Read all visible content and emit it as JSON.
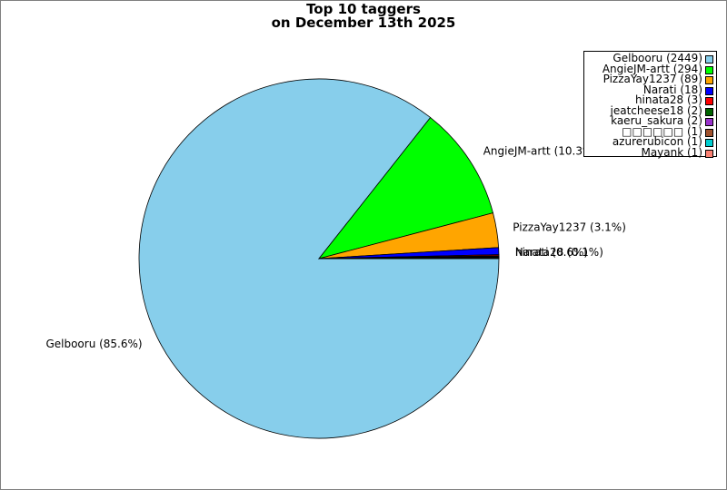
{
  "title_line1": "Top 10 taggers",
  "title_line2": "on December 13th 2025",
  "chart_data": {
    "type": "pie",
    "title": "Top 10 taggers on December 13th 2025",
    "legend_position": "top-right",
    "slices": [
      {
        "name": "Gelbooru",
        "value": 2449,
        "legend": "Gelbooru (2449)",
        "label": "Gelbooru (85.6%)",
        "color": "#87ceeb"
      },
      {
        "name": "AngieJM-artt",
        "value": 294,
        "legend": "AngieJM-artt (294)",
        "label": "AngieJM-artt (10.3%)",
        "color": "#00ff00"
      },
      {
        "name": "PizzaYay1237",
        "value": 89,
        "legend": "PizzaYay1237 (89)",
        "label": "PizzaYay1237 (3.1%)",
        "color": "#ffa500"
      },
      {
        "name": "Narati",
        "value": 18,
        "legend": "Narati (18)",
        "label": "Narati (0.6%)",
        "color": "#0000ff"
      },
      {
        "name": "hinata28",
        "value": 3,
        "legend": "hinata28 (3)",
        "label": "hinata28 (0.1%)",
        "color": "#ff0000"
      },
      {
        "name": "jeatcheese18",
        "value": 2,
        "legend": "jeatcheese18 (2)",
        "label": "",
        "color": "#006400"
      },
      {
        "name": "kaeru_sakura",
        "value": 2,
        "legend": "kaeru_sakura (2)",
        "label": "",
        "color": "#9932cc"
      },
      {
        "name": "□□□□□□",
        "value": 1,
        "legend": "□□□□□□ (1)",
        "label": "",
        "color": "#a0522d"
      },
      {
        "name": "azurerubicon",
        "value": 1,
        "legend": "azurerubicon (1)",
        "label": "",
        "color": "#00ced1"
      },
      {
        "name": "Mayank",
        "value": 1,
        "legend": "Mayank (1)",
        "label": "",
        "color": "#fa8072"
      }
    ]
  }
}
